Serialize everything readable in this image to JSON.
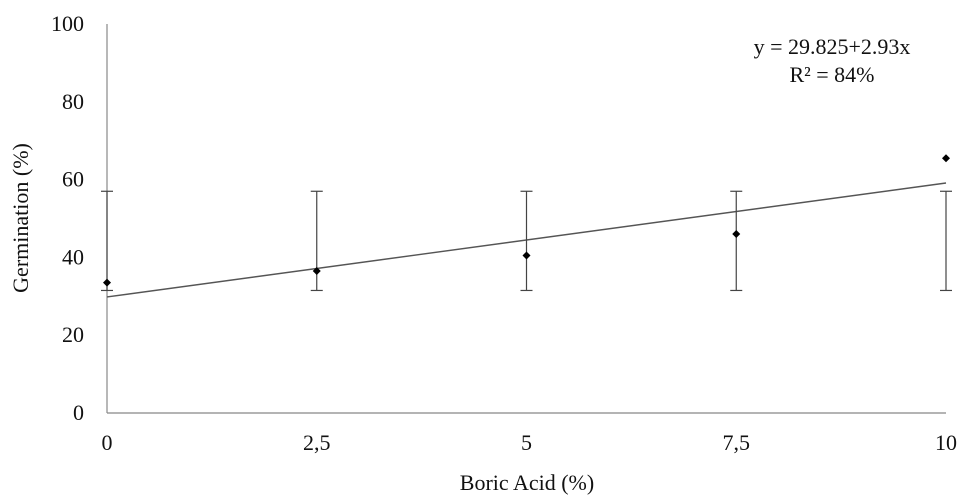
{
  "chart_data": {
    "type": "scatter",
    "title": "",
    "xlabel": "Boric Acid (%)",
    "ylabel": "Germination (%)",
    "xlim": [
      0,
      10
    ],
    "ylim": [
      0,
      100
    ],
    "x_ticks": [
      0,
      2.5,
      5,
      7.5,
      10
    ],
    "x_tick_labels": [
      "0",
      "2,5",
      "5",
      "7,5",
      "10"
    ],
    "y_ticks": [
      0,
      20,
      40,
      60,
      80,
      100
    ],
    "y_tick_labels": [
      "0",
      "20",
      "40",
      "60",
      "80",
      "100"
    ],
    "grid": false,
    "legend": "none",
    "series": [
      {
        "x": [
          0,
          2.5,
          5,
          7.5,
          10
        ],
        "y": [
          33.5,
          36.5,
          40.5,
          46,
          65.5
        ],
        "error_low": [
          31.5,
          31.5,
          31.5,
          31.5,
          31.5
        ],
        "error_high": [
          57,
          57,
          57,
          57,
          57
        ]
      }
    ],
    "trendline": {
      "intercept": 29.825,
      "slope": 2.93,
      "equation": "y = 29.825+2.93x",
      "r2": "R² = 84%"
    }
  },
  "colors": {
    "points": "#000000",
    "trendline": "#555555",
    "axis": "#888888",
    "error_bars": "#444444"
  }
}
